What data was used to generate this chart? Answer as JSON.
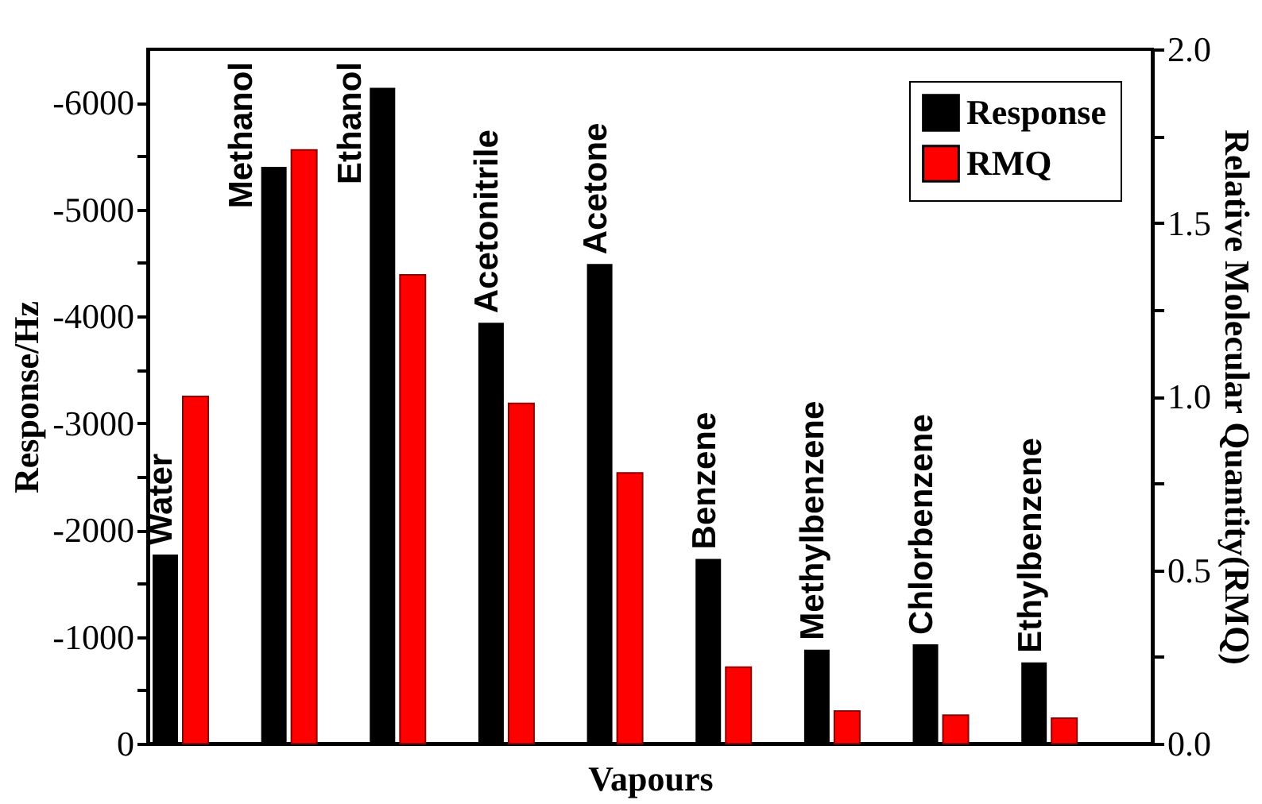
{
  "chart_data": {
    "type": "bar",
    "xlabel": "Vapours",
    "ylabel": "Response/Hz",
    "y2label": "Relative Molecular Quantity(RMQ)",
    "categories": [
      "Water",
      "Methanol",
      "Ethanol",
      "Acetonitrile",
      "Acetone",
      "Benzene",
      "Methylbenzene",
      "Chlorbenzene",
      "Ethylbenzene"
    ],
    "series": [
      {
        "name": "Response",
        "color": "#000000",
        "values": [
          -1770,
          -5400,
          -6140,
          -3940,
          -4490,
          -1730,
          -880,
          -930,
          -760
        ]
      },
      {
        "name": "RMQ",
        "color": "#ff0000",
        "axis": "y2",
        "values": [
          1.0,
          1.71,
          1.35,
          0.98,
          0.78,
          0.22,
          0.094,
          0.082,
          0.073
        ]
      }
    ],
    "ylim": [
      0,
      -6500
    ],
    "yticks": [
      0,
      {
        "value": -500,
        "label": null
      },
      -1000,
      {
        "value": -1500,
        "label": null
      },
      -2000,
      {
        "value": -2500,
        "label": null
      },
      -3000,
      {
        "value": -3500,
        "label": null
      },
      -4000,
      {
        "value": -4500,
        "label": null
      },
      -5000,
      {
        "value": -5500,
        "label": null
      },
      -6000
    ],
    "y2lim": [
      0,
      2.0
    ],
    "y2ticks": [
      {
        "value": 0,
        "label": "0.0"
      },
      {
        "value": 0.25,
        "label": null
      },
      {
        "value": 0.5,
        "label": "0.5"
      },
      {
        "value": 0.75,
        "label": null
      },
      {
        "value": 1.0,
        "label": "1.0"
      },
      {
        "value": 1.25,
        "label": null
      },
      {
        "value": 1.5,
        "label": "1.5"
      },
      {
        "value": 1.75,
        "label": null
      },
      {
        "value": 2.0,
        "label": "2.0"
      }
    ],
    "legend": "top right",
    "grid": false
  }
}
